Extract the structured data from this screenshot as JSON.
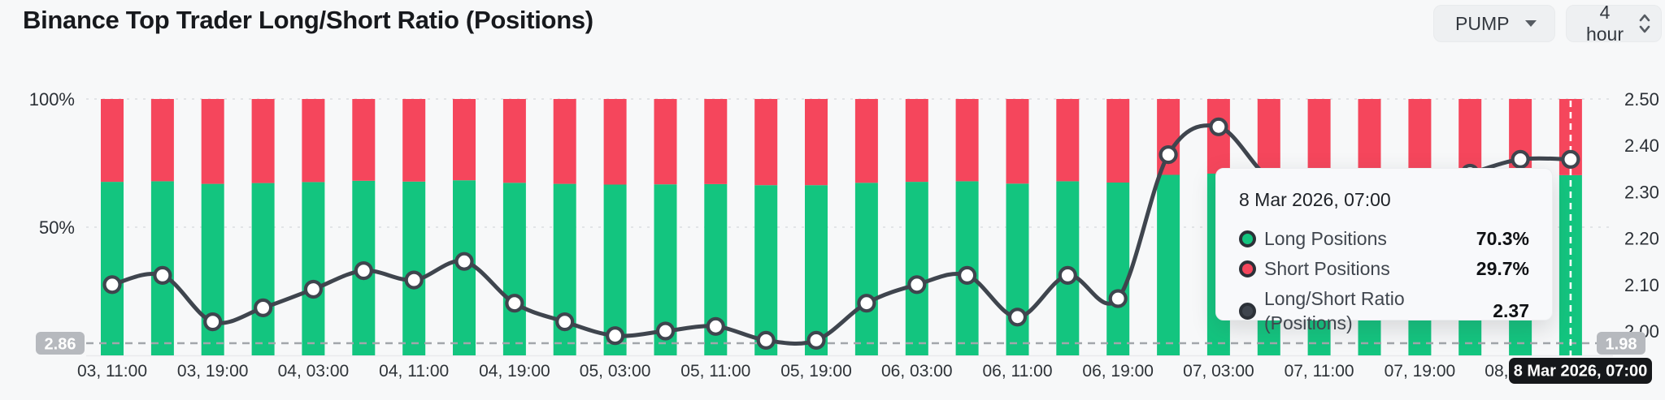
{
  "header": {
    "title": "Binance Top Trader Long/Short Ratio (Positions)",
    "symbol_select": {
      "value": "PUMP"
    },
    "interval_select": {
      "value": "4 hour"
    }
  },
  "chart_data": {
    "type": "bar",
    "subtype": "stacked-100pct-bars-with-ratio-line",
    "categories": [
      "03, 11:00",
      "03, 15:00",
      "03, 19:00",
      "03, 23:00",
      "04, 03:00",
      "04, 07:00",
      "04, 11:00",
      "04, 15:00",
      "04, 19:00",
      "04, 23:00",
      "05, 03:00",
      "05, 07:00",
      "05, 11:00",
      "05, 15:00",
      "05, 19:00",
      "05, 23:00",
      "06, 03:00",
      "06, 07:00",
      "06, 11:00",
      "06, 15:00",
      "06, 19:00",
      "06, 23:00",
      "07, 03:00",
      "07, 07:00",
      "07, 11:00",
      "07, 15:00",
      "07, 19:00",
      "07, 23:00",
      "08, 03:00",
      "08, 07:00"
    ],
    "x_tick_labels": [
      "03, 11:00",
      "03, 19:00",
      "04, 03:00",
      "04, 11:00",
      "04, 19:00",
      "05, 03:00",
      "05, 11:00",
      "05, 19:00",
      "06, 03:00",
      "06, 11:00",
      "06, 19:00",
      "07, 03:00",
      "07, 11:00",
      "07, 19:00",
      "08, 03:00"
    ],
    "series": [
      {
        "name": "Long Positions",
        "type": "bar",
        "stack": "bottom",
        "unit": "%",
        "color": "#13c57f",
        "values": [
          67.7,
          67.9,
          66.9,
          67.2,
          67.6,
          68.1,
          67.8,
          68.3,
          67.3,
          66.9,
          66.6,
          66.7,
          66.8,
          66.4,
          66.4,
          67.3,
          67.7,
          67.9,
          67.0,
          67.9,
          67.4,
          70.4,
          70.9,
          70.0,
          69.7,
          69.6,
          69.8,
          70.1,
          70.3,
          70.3
        ]
      },
      {
        "name": "Short Positions",
        "type": "bar",
        "stack": "top",
        "unit": "%",
        "color": "#f5465c",
        "values": [
          32.3,
          32.1,
          33.1,
          32.8,
          32.4,
          31.9,
          32.2,
          31.7,
          32.7,
          33.1,
          33.4,
          33.3,
          33.2,
          33.6,
          33.6,
          32.7,
          32.3,
          32.1,
          33.0,
          32.1,
          32.6,
          29.6,
          29.1,
          30.0,
          30.3,
          30.4,
          30.2,
          29.9,
          29.7,
          29.7
        ]
      },
      {
        "name": "Long/Short Ratio (Positions)",
        "type": "line",
        "axis": "right",
        "color": "#3f454e",
        "values": [
          2.1,
          2.12,
          2.02,
          2.05,
          2.09,
          2.13,
          2.11,
          2.15,
          2.06,
          2.02,
          1.99,
          2.0,
          2.01,
          1.98,
          1.98,
          2.06,
          2.1,
          2.12,
          2.03,
          2.12,
          2.07,
          2.38,
          2.44,
          2.33,
          2.3,
          2.29,
          2.31,
          2.34,
          2.37,
          2.37
        ]
      }
    ],
    "left_axis": {
      "unit": "%",
      "ticks": [
        100,
        50
      ],
      "range": [
        0,
        100
      ]
    },
    "right_axis": {
      "ticks": [
        2.5,
        2.4,
        2.3,
        2.2,
        2.1,
        2.0
      ],
      "range": [
        1.95,
        2.55
      ]
    },
    "grid": {
      "horizontal_pct_lines": [
        100,
        50
      ],
      "baseline": true
    },
    "legend": "none (shown in tooltip only)"
  },
  "crosshair": {
    "hover_index": 29,
    "left_badge": "2.86",
    "right_badge": "1.98",
    "date_badge": "8 Mar 2026, 07:00"
  },
  "tooltip": {
    "title": "8 Mar 2026, 07:00",
    "rows": [
      {
        "label": "Long Positions",
        "value": "70.3%",
        "color": "#13c57f"
      },
      {
        "label": "Short Positions",
        "value": "29.7%",
        "color": "#f5465c"
      },
      {
        "label": "Long/Short Ratio (Positions)",
        "value": "2.37",
        "color": "#3f454e"
      }
    ]
  }
}
